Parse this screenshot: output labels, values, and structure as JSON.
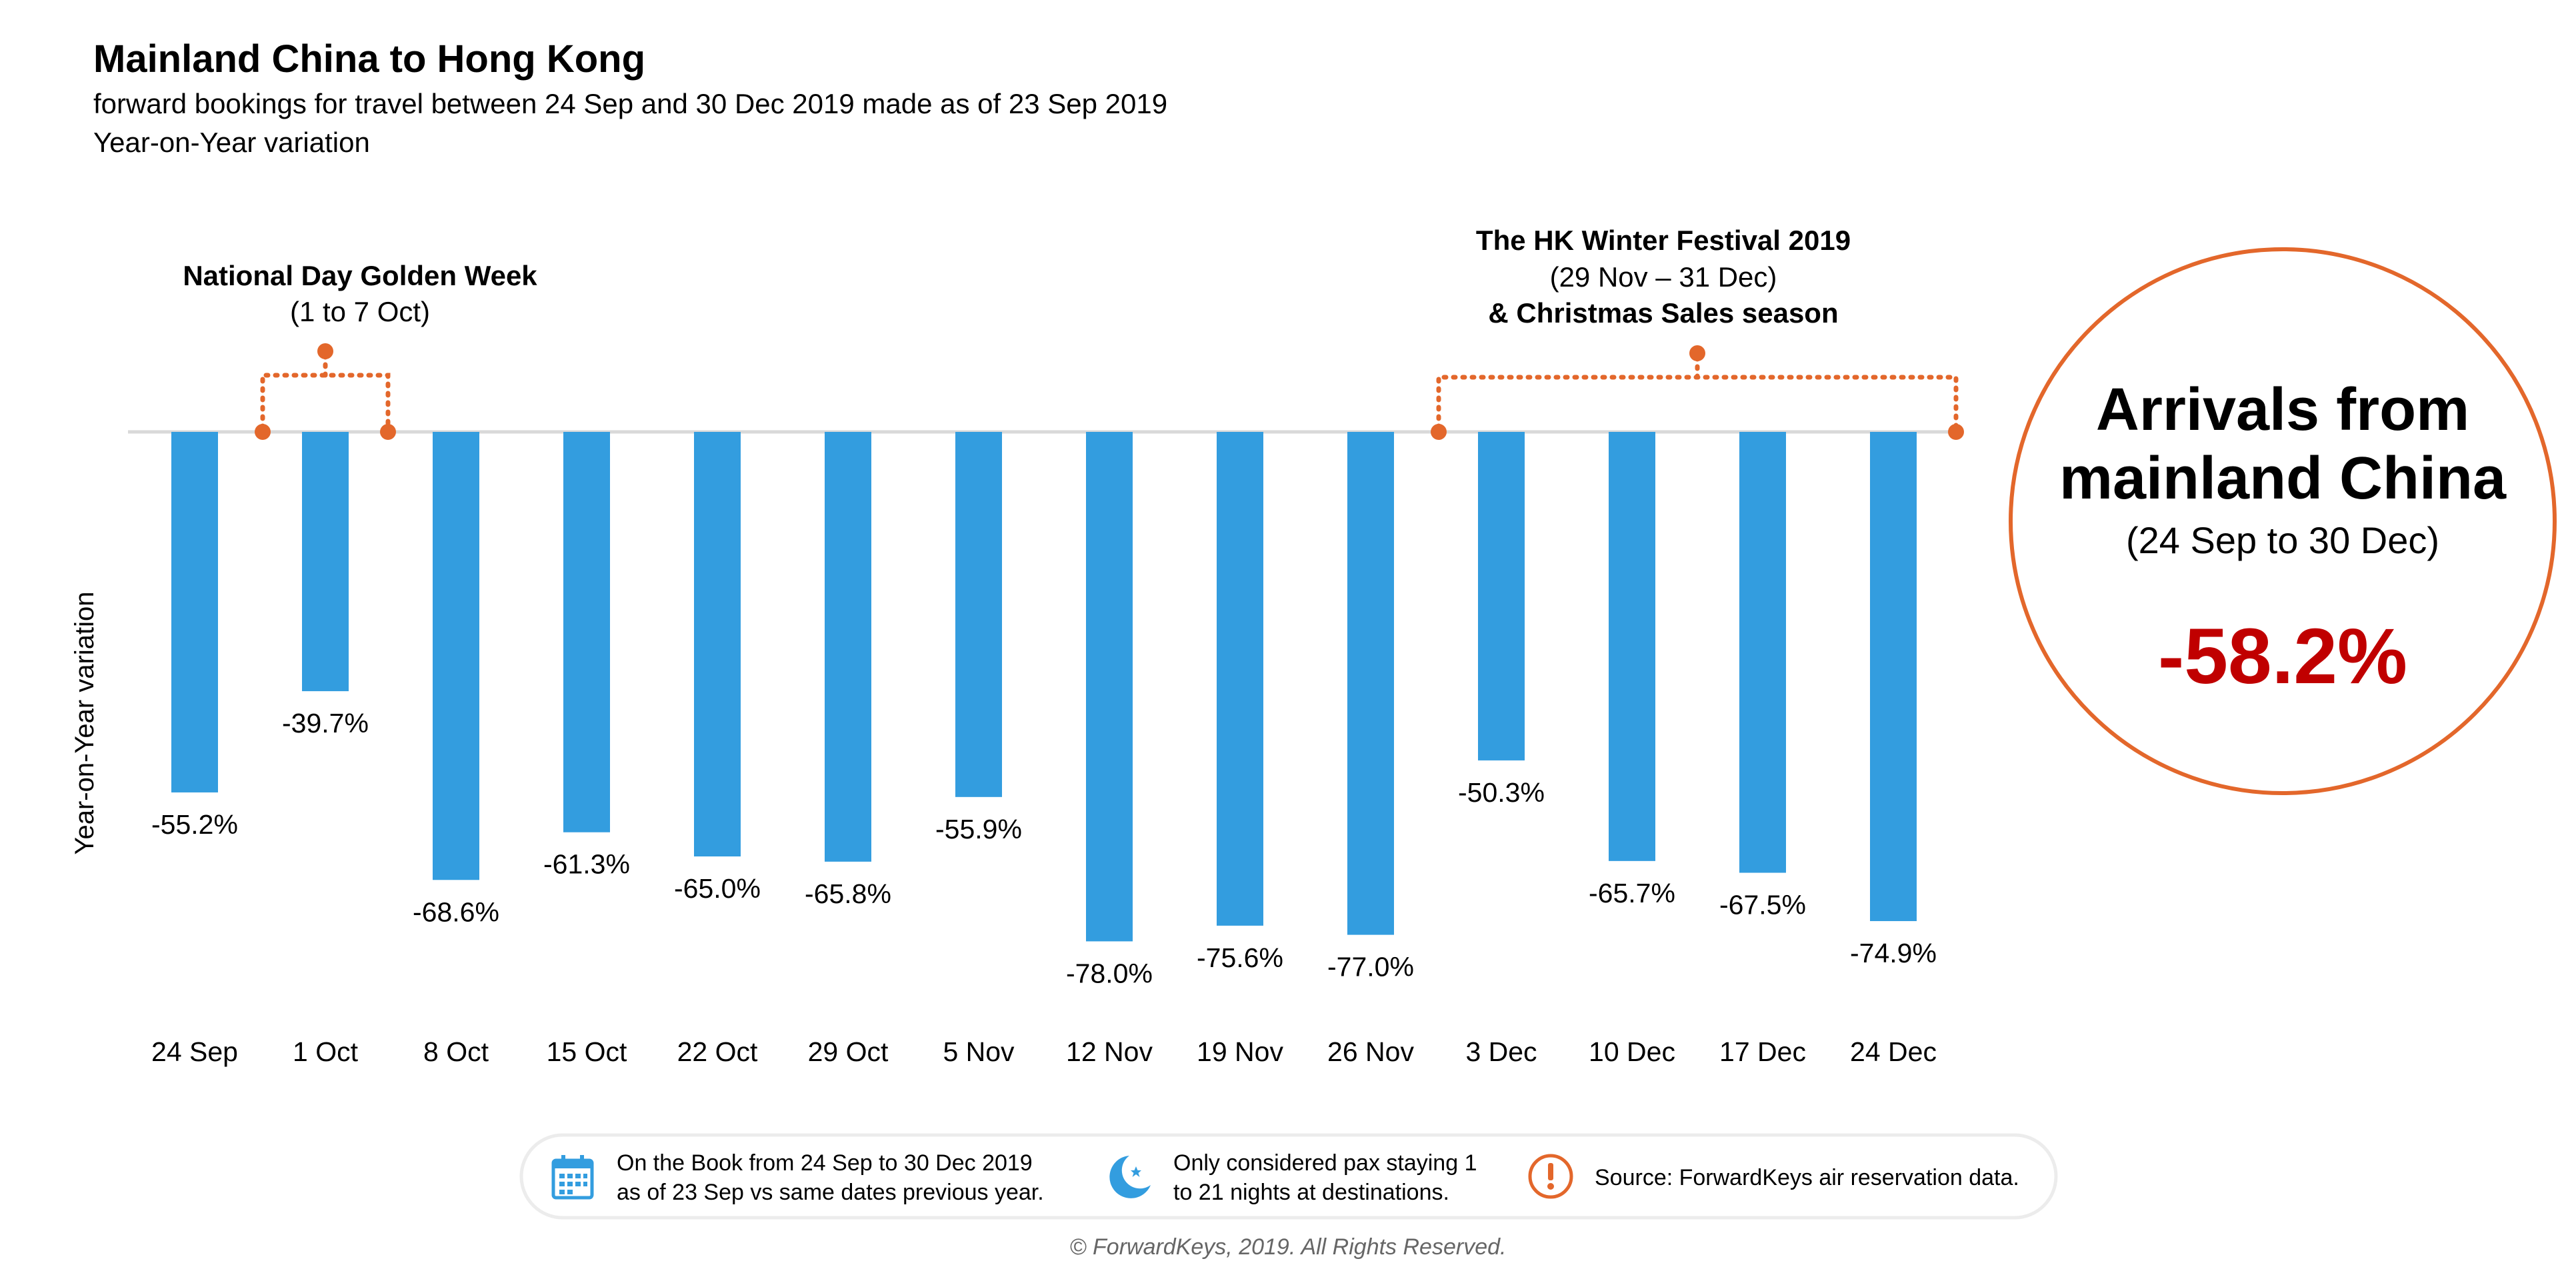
{
  "header": {
    "title": "Mainland China to Hong Kong",
    "subtitle_line1": "forward bookings for travel between 24 Sep and 30 Dec 2019 made as of 23 Sep 2019",
    "subtitle_line2": "Year-on-Year variation"
  },
  "chart_data": {
    "type": "bar",
    "title": "Mainland China to Hong Kong",
    "subtitle": "forward bookings for travel between 24 Sep and 30 Dec 2019 made as of 23 Sep 2019",
    "ylabel": "Year-on-Year variation",
    "xlabel": "",
    "categories": [
      "24 Sep",
      "1 Oct",
      "8 Oct",
      "15 Oct",
      "22 Oct",
      "29 Oct",
      "5 Nov",
      "12 Nov",
      "19 Nov",
      "26 Nov",
      "3 Dec",
      "10 Dec",
      "17 Dec",
      "24 Dec"
    ],
    "values": [
      -55.2,
      -39.7,
      -68.6,
      -61.3,
      -65.0,
      -65.8,
      -55.9,
      -78.0,
      -75.6,
      -77.0,
      -50.3,
      -65.7,
      -67.5,
      -74.9
    ],
    "value_labels": [
      "-55.2%",
      "-39.7%",
      "-68.6%",
      "-61.3%",
      "-65.0%",
      "-65.8%",
      "-55.9%",
      "-78.0%",
      "-75.6%",
      "-77.0%",
      "-50.3%",
      "-65.7%",
      "-67.5%",
      "-74.9%"
    ],
    "ylim": [
      -80,
      0
    ],
    "grid": false,
    "bar_color": "#339ddf",
    "annotations": [
      {
        "label_bold": "National Day Golden Week",
        "label_normal": "(1 to 7 Oct)",
        "from_category": "1 Oct",
        "to_category": "8 Oct"
      },
      {
        "label_bold": "The HK Winter Festival 2019",
        "label_normal": "(29 Nov – 31 Dec)",
        "label_bold_2": "& Christmas Sales season",
        "from_category": "26 Nov",
        "to_category": "24 Dec"
      }
    ]
  },
  "callout": {
    "line1": "Arrivals from",
    "line2": "mainland China",
    "period": "(24 Sep to 30 Dec)",
    "value": "-58.2%"
  },
  "footer": {
    "items": [
      {
        "icon": "calendar-icon",
        "line1": "On the Book from 24 Sep to 30 Dec 2019",
        "line2": "as of 23 Sep vs same dates previous year."
      },
      {
        "icon": "moon-icon",
        "line1": "Only considered pax staying 1",
        "line2": "to 21 nights at destinations."
      },
      {
        "icon": "exclamation-icon",
        "line1": "Source: ForwardKeys air reservation data.",
        "line2": ""
      }
    ],
    "copyright": "© ForwardKeys, 2019. All Rights Reserved."
  },
  "colors": {
    "bar": "#339ddf",
    "accent_orange": "#e3672b",
    "callout_value": "#c00000",
    "axis": "#d9d9d9"
  }
}
